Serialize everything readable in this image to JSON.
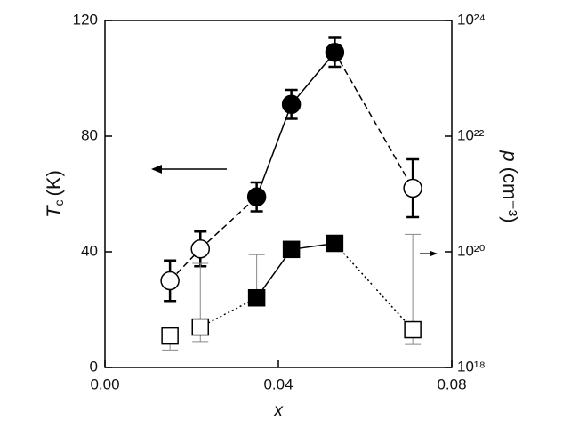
{
  "chart_data": {
    "type": "dual-errorbar",
    "xlabel": "x",
    "ylabel": "T",
    "ylabel_sub": "c",
    "ylabel_unit": "(K)",
    "y2label": "p",
    "y2label_unit": "(cm⁻³)",
    "xlim": [
      0,
      0.08
    ],
    "xticks": [
      {
        "value": 0,
        "label": "0.00"
      },
      {
        "value": 0.04,
        "label": "0.04"
      },
      {
        "value": 0.08,
        "label": "0.08"
      }
    ],
    "ylim": [
      0,
      120
    ],
    "yticks": [
      0,
      40,
      80,
      120
    ],
    "y2lim": [
      1e+18,
      1e+24
    ],
    "y2log": true,
    "y2ticks": [
      {
        "value": 1e+18,
        "label": "10¹⁸"
      },
      {
        "value": 1e+20,
        "label": "10²⁰"
      },
      {
        "value": 1e+22,
        "label": "10²²"
      },
      {
        "value": 1e+24,
        "label": "10²⁴"
      }
    ],
    "series": [
      {
        "marker": "circle",
        "color": "#000000",
        "x": [
          0.015,
          0.022,
          0.035,
          0.043,
          0.053,
          0.071
        ],
        "values": [
          30,
          41,
          59,
          91,
          109,
          62
        ],
        "errors": [
          7,
          6,
          5,
          5,
          5,
          10
        ],
        "filled": [
          false,
          false,
          true,
          true,
          true,
          false
        ],
        "line_styles": [
          "dashed",
          "dashed",
          "solid",
          "solid",
          "dashed"
        ]
      },
      {
        "marker": "square",
        "color": "#000000",
        "axis": "y2",
        "x": [
          0.015,
          0.022,
          0.035,
          0.043,
          0.053,
          0.071
        ],
        "values": [
          3.5e+18,
          5e+18,
          1.6e+19,
          1.1e+20,
          1.4e+20,
          4.5e+18
        ],
        "lower": [
          2e+18,
          2.8e+18,
          null,
          null,
          null,
          2.5e+18
        ],
        "upper": [
          null,
          6.3e+19,
          8.9e+19,
          null,
          null,
          2e+20
        ],
        "filled": [
          false,
          false,
          true,
          true,
          true,
          false
        ],
        "line_styles": [
          null,
          "dotted",
          "solid",
          "solid",
          "dotted"
        ]
      }
    ]
  }
}
